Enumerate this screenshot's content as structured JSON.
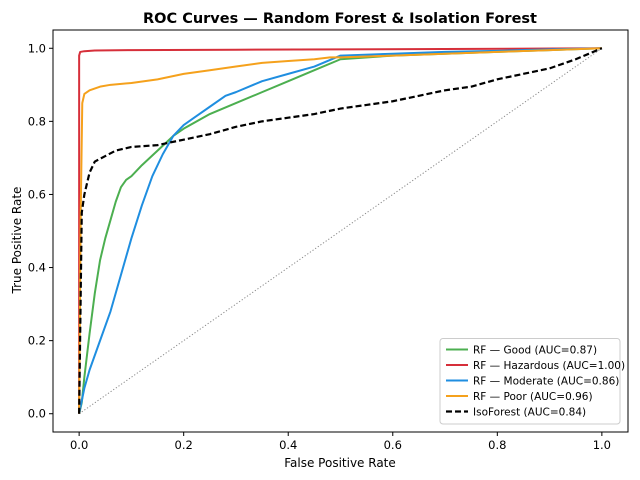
{
  "chart_data": {
    "type": "line",
    "title": "ROC Curves — Random Forest & Isolation Forest",
    "xlabel": "False Positive Rate",
    "ylabel": "True Positive Rate",
    "xlim": [
      -0.05,
      1.05
    ],
    "ylim": [
      -0.05,
      1.05
    ],
    "xticks": [
      "0.0",
      "0.2",
      "0.4",
      "0.6",
      "0.8",
      "1.0"
    ],
    "yticks": [
      "0.0",
      "0.2",
      "0.4",
      "0.6",
      "0.8",
      "1.0"
    ],
    "grid": false,
    "legend_position": "lower-right",
    "diagonal_reference": true,
    "series": [
      {
        "name": "RF — Good (AUC=0.87)",
        "color": "#4caf50",
        "dash": "solid",
        "x": [
          0,
          0.005,
          0.01,
          0.02,
          0.03,
          0.04,
          0.05,
          0.06,
          0.07,
          0.08,
          0.09,
          0.1,
          0.12,
          0.15,
          0.18,
          0.2,
          0.25,
          0.3,
          0.35,
          0.4,
          0.45,
          0.5,
          0.6,
          0.7,
          0.8,
          0.9,
          1.0
        ],
        "y": [
          0,
          0.03,
          0.1,
          0.22,
          0.33,
          0.42,
          0.48,
          0.53,
          0.58,
          0.62,
          0.64,
          0.65,
          0.68,
          0.72,
          0.76,
          0.78,
          0.82,
          0.85,
          0.88,
          0.91,
          0.94,
          0.97,
          0.98,
          0.985,
          0.99,
          0.995,
          1.0
        ]
      },
      {
        "name": "RF — Hazardous (AUC=1.00)",
        "color": "#d62f3a",
        "dash": "solid",
        "x": [
          0,
          0.0,
          0.002,
          0.01,
          0.03,
          0.1,
          0.3,
          0.5,
          0.7,
          1.0
        ],
        "y": [
          0,
          0.98,
          0.99,
          0.992,
          0.994,
          0.995,
          0.996,
          0.997,
          0.998,
          1.0
        ]
      },
      {
        "name": "RF — Moderate (AUC=0.86)",
        "color": "#1f8ee0",
        "dash": "solid",
        "x": [
          0,
          0.01,
          0.02,
          0.04,
          0.06,
          0.08,
          0.1,
          0.12,
          0.14,
          0.16,
          0.18,
          0.2,
          0.22,
          0.25,
          0.28,
          0.3,
          0.35,
          0.4,
          0.45,
          0.5,
          0.6,
          0.7,
          0.8,
          0.9,
          1.0
        ],
        "y": [
          0,
          0.07,
          0.12,
          0.2,
          0.28,
          0.38,
          0.48,
          0.57,
          0.65,
          0.71,
          0.76,
          0.79,
          0.81,
          0.84,
          0.87,
          0.88,
          0.91,
          0.93,
          0.95,
          0.98,
          0.985,
          0.99,
          0.993,
          0.997,
          1.0
        ]
      },
      {
        "name": "RF — Poor (AUC=0.96)",
        "color": "#f5a11c",
        "dash": "solid",
        "x": [
          0,
          0.003,
          0.006,
          0.01,
          0.02,
          0.04,
          0.06,
          0.1,
          0.15,
          0.2,
          0.25,
          0.3,
          0.35,
          0.4,
          0.45,
          0.48,
          0.5,
          0.6,
          0.7,
          0.8,
          0.9,
          1.0
        ],
        "y": [
          0,
          0.55,
          0.85,
          0.875,
          0.885,
          0.895,
          0.9,
          0.905,
          0.915,
          0.93,
          0.94,
          0.95,
          0.96,
          0.965,
          0.97,
          0.975,
          0.975,
          0.98,
          0.985,
          0.99,
          0.995,
          1.0
        ]
      },
      {
        "name": "IsoForest (AUC=0.84)",
        "color": "#000000",
        "dash": "dashed",
        "x": [
          0,
          0.005,
          0.01,
          0.02,
          0.03,
          0.05,
          0.07,
          0.1,
          0.15,
          0.2,
          0.25,
          0.3,
          0.35,
          0.4,
          0.45,
          0.5,
          0.55,
          0.6,
          0.65,
          0.7,
          0.75,
          0.8,
          0.85,
          0.9,
          0.95,
          1.0
        ],
        "y": [
          0,
          0.55,
          0.6,
          0.66,
          0.69,
          0.705,
          0.72,
          0.73,
          0.735,
          0.75,
          0.765,
          0.785,
          0.8,
          0.81,
          0.82,
          0.835,
          0.845,
          0.855,
          0.87,
          0.885,
          0.895,
          0.915,
          0.93,
          0.945,
          0.97,
          1.0
        ]
      }
    ]
  }
}
